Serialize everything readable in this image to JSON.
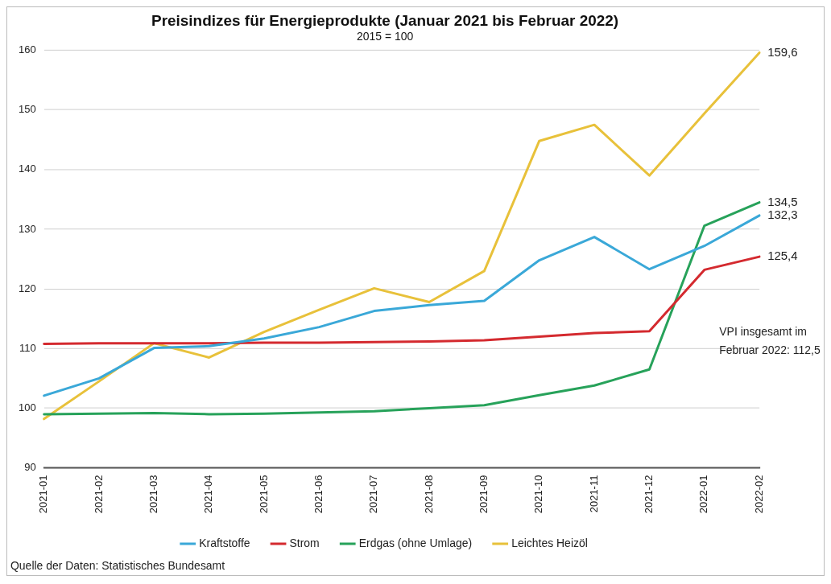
{
  "chart_data": {
    "type": "line",
    "title": "Preisindizes für Energieprodukte (Januar 2021 bis Februar 2022)",
    "subtitle": "2015 = 100",
    "categories": [
      "2021-01",
      "2021-02",
      "2021-03",
      "2021-04",
      "2021-05",
      "2021-06",
      "2021-07",
      "2021-08",
      "2021-09",
      "2021-10",
      "2021-11",
      "2021-12",
      "2022-01",
      "2022-02"
    ],
    "series": [
      {
        "name": "Kraftstoffe",
        "color": "#3aa8d8",
        "values": [
          102.1,
          105.0,
          110.1,
          110.4,
          111.7,
          113.6,
          116.3,
          117.3,
          118.0,
          124.8,
          128.7,
          123.3,
          127.2,
          132.3
        ],
        "value_labels": [
          null,
          null,
          null,
          null,
          null,
          null,
          null,
          null,
          null,
          null,
          null,
          null,
          null,
          "132,3"
        ]
      },
      {
        "name": "Strom",
        "color": "#d42a2f",
        "values": [
          110.8,
          110.9,
          110.9,
          110.9,
          111.0,
          111.0,
          111.1,
          111.2,
          111.4,
          112.0,
          112.6,
          112.9,
          123.2,
          125.4
        ],
        "value_labels": [
          null,
          null,
          null,
          null,
          null,
          null,
          null,
          null,
          null,
          null,
          null,
          null,
          null,
          "125,4"
        ]
      },
      {
        "name": "Erdgas (ohne Umlage)",
        "color": "#27a25a",
        "values": [
          99.0,
          99.1,
          99.2,
          99.0,
          99.1,
          99.3,
          99.5,
          100.0,
          100.5,
          102.2,
          103.8,
          106.5,
          130.6,
          134.5
        ],
        "value_labels": [
          null,
          null,
          null,
          null,
          null,
          null,
          null,
          null,
          null,
          null,
          null,
          null,
          null,
          "134,5"
        ]
      },
      {
        "name": "Leichtes Heizöl",
        "color": "#e8c13a",
        "values": [
          98.2,
          104.5,
          110.9,
          108.5,
          112.8,
          116.5,
          120.1,
          117.8,
          123.0,
          144.8,
          147.5,
          139.0,
          149.4,
          159.6
        ],
        "value_labels": [
          null,
          null,
          null,
          null,
          null,
          null,
          null,
          null,
          null,
          null,
          null,
          null,
          null,
          "159,6"
        ]
      }
    ],
    "ylim": [
      90,
      160
    ],
    "yticks": [
      90,
      100,
      110,
      120,
      130,
      140,
      150,
      160
    ],
    "grid": "y",
    "legend": "bottom",
    "marker": "none",
    "line_style": "solid",
    "annotations": [
      "VPI insgesamt im\nFebruar 2022: 112,5",
      "Quelle der Daten: Statistisches Bundesamt"
    ]
  }
}
